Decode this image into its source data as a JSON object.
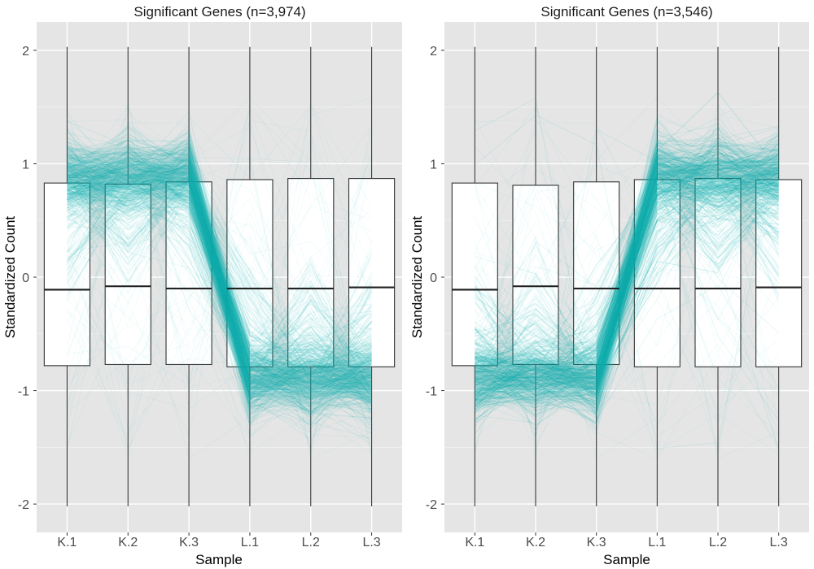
{
  "chart_data": [
    {
      "type": "parallel-coordinates-boxplot",
      "title": "Significant Genes (n=3,974)",
      "xlabel": "Sample",
      "ylabel": "Standardized Count",
      "categories": [
        "K.1",
        "K.2",
        "K.3",
        "L.1",
        "L.2",
        "L.3"
      ],
      "ylim": [
        -2.25,
        2.25
      ],
      "yticks": [
        "2",
        "1",
        "0",
        "-1",
        "-2"
      ],
      "ytick_values": [
        2,
        1,
        0,
        -1,
        -2
      ],
      "grid": true,
      "line_color": "#12b3b3",
      "boxes": [
        {
          "name": "K.1",
          "q1": -0.78,
          "median": -0.11,
          "q3": 0.83,
          "min": -2.02,
          "max": 2.03
        },
        {
          "name": "K.2",
          "q1": -0.77,
          "median": -0.08,
          "q3": 0.82,
          "min": -2.02,
          "max": 2.03
        },
        {
          "name": "K.3",
          "q1": -0.77,
          "median": -0.1,
          "q3": 0.84,
          "min": -2.02,
          "max": 2.03
        },
        {
          "name": "L.1",
          "q1": -0.79,
          "median": -0.1,
          "q3": 0.86,
          "min": -2.02,
          "max": 2.03
        },
        {
          "name": "L.2",
          "q1": -0.79,
          "median": -0.1,
          "q3": 0.87,
          "min": -2.02,
          "max": 2.03
        },
        {
          "name": "L.3",
          "q1": -0.79,
          "median": -0.09,
          "q3": 0.87,
          "min": -2.02,
          "max": 2.03
        }
      ],
      "pattern_mean": [
        0.88,
        0.88,
        0.9,
        -0.9,
        -0.9,
        -0.9
      ]
    },
    {
      "type": "parallel-coordinates-boxplot",
      "title": "Significant Genes (n=3,546)",
      "xlabel": "Sample",
      "ylabel": "Standardized Count",
      "categories": [
        "K.1",
        "K.2",
        "K.3",
        "L.1",
        "L.2",
        "L.3"
      ],
      "ylim": [
        -2.25,
        2.25
      ],
      "yticks": [
        "2",
        "1",
        "0",
        "-1",
        "-2"
      ],
      "ytick_values": [
        2,
        1,
        0,
        -1,
        -2
      ],
      "grid": true,
      "line_color": "#12b3b3",
      "boxes": [
        {
          "name": "K.1",
          "q1": -0.78,
          "median": -0.11,
          "q3": 0.83,
          "min": -2.02,
          "max": 2.03
        },
        {
          "name": "K.2",
          "q1": -0.77,
          "median": -0.08,
          "q3": 0.81,
          "min": -2.02,
          "max": 2.03
        },
        {
          "name": "K.3",
          "q1": -0.77,
          "median": -0.1,
          "q3": 0.84,
          "min": -2.02,
          "max": 2.03
        },
        {
          "name": "L.1",
          "q1": -0.79,
          "median": -0.1,
          "q3": 0.86,
          "min": -2.02,
          "max": 2.03
        },
        {
          "name": "L.2",
          "q1": -0.79,
          "median": -0.1,
          "q3": 0.87,
          "min": -2.02,
          "max": 2.03
        },
        {
          "name": "L.3",
          "q1": -0.79,
          "median": -0.09,
          "q3": 0.86,
          "min": -2.02,
          "max": 2.03
        }
      ],
      "pattern_mean": [
        -0.9,
        -0.9,
        -0.9,
        0.9,
        0.9,
        0.9
      ]
    }
  ]
}
